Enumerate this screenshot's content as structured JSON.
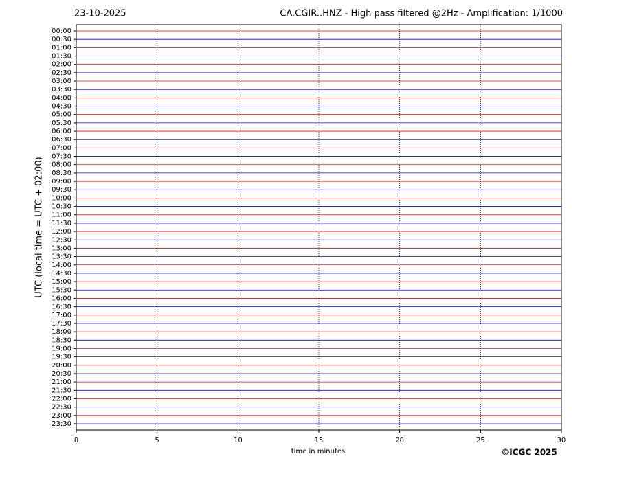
{
  "chart_data": {
    "type": "helicorder",
    "date": "23-10-2025",
    "title": "CA.CGIR..HNZ - High pass filtered @2Hz - Amplification: 1/1000",
    "ylabel": "UTC (local time = UTC + 02:00)",
    "xlabel": "time in minutes",
    "categories": [
      "00:00",
      "00:30",
      "01:00",
      "01:30",
      "02:00",
      "02:30",
      "03:00",
      "03:30",
      "04:00",
      "04:30",
      "05:00",
      "05:30",
      "06:00",
      "06:30",
      "07:00",
      "07:30",
      "08:00",
      "08:30",
      "09:00",
      "09:30",
      "10:00",
      "10:30",
      "11:00",
      "11:30",
      "12:00",
      "12:30",
      "13:00",
      "13:30",
      "14:00",
      "14:30",
      "15:00",
      "15:30",
      "16:00",
      "16:30",
      "17:00",
      "17:30",
      "18:00",
      "18:30",
      "19:00",
      "19:30",
      "20:00",
      "20:30",
      "21:00",
      "21:30",
      "22:00",
      "22:30",
      "23:00",
      "23:30"
    ],
    "colors": [
      "#ff0000",
      "#0000ff"
    ],
    "xlim": [
      0,
      30
    ],
    "xticks": [
      0,
      5,
      10,
      15,
      20,
      25,
      30
    ],
    "grid": true
  },
  "copyright": "©ICGC 2025"
}
